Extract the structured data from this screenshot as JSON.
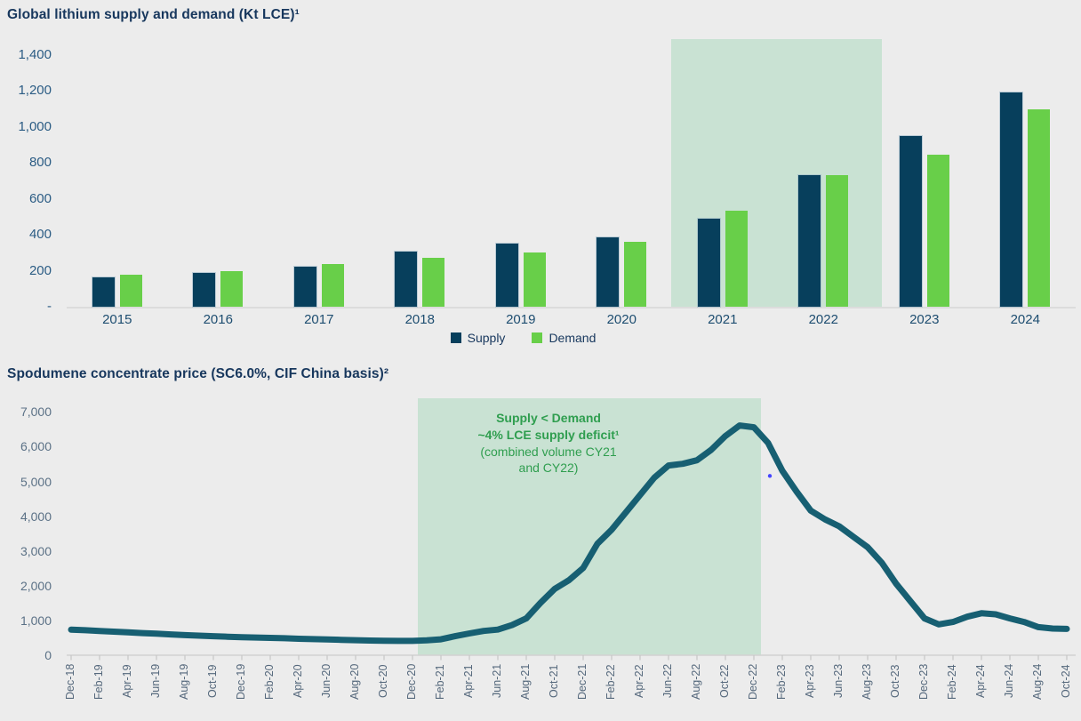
{
  "page": {
    "background_color": "#ececec"
  },
  "chart_data": [
    {
      "type": "bar",
      "title": "Global lithium supply and demand (Kt LCE)¹",
      "categories": [
        "2015",
        "2016",
        "2017",
        "2018",
        "2019",
        "2020",
        "2021",
        "2022",
        "2023",
        "2024"
      ],
      "series": [
        {
          "name": "Supply",
          "color": "#073f5c",
          "values": [
            165,
            190,
            225,
            305,
            350,
            385,
            490,
            730,
            950,
            1190
          ]
        },
        {
          "name": "Demand",
          "color": "#68cf49",
          "values": [
            180,
            200,
            235,
            270,
            300,
            360,
            535,
            730,
            845,
            1100
          ]
        }
      ],
      "ylim": [
        0,
        1490
      ],
      "grid": false,
      "y_ticks": [
        {
          "label": "1,400",
          "value": 1400
        },
        {
          "label": "1,200",
          "value": 1200
        },
        {
          "label": "1,000",
          "value": 1000
        },
        {
          "label": "800",
          "value": 800
        },
        {
          "label": "600",
          "value": 600
        },
        {
          "label": "400",
          "value": 400
        },
        {
          "label": "200",
          "value": 200
        },
        {
          "label": "-",
          "value": 0
        }
      ],
      "legend": {
        "position": "bottom-center",
        "items": [
          "Supply",
          "Demand"
        ]
      },
      "highlight_band": {
        "from": "2021",
        "to": "2022",
        "color": "#c9e2d3"
      }
    },
    {
      "type": "line",
      "title": "Spodumene concentrate price (SC6.0%, CIF China basis)²",
      "line_color": "#175f72",
      "ylim": [
        0,
        7000
      ],
      "grid": false,
      "y_ticks": [
        {
          "label": "7,000",
          "value": 7000
        },
        {
          "label": "6,000",
          "value": 6000
        },
        {
          "label": "5,000",
          "value": 5000
        },
        {
          "label": "4,000",
          "value": 4000
        },
        {
          "label": "3,000",
          "value": 3000
        },
        {
          "label": "2,000",
          "value": 2000
        },
        {
          "label": "1,000",
          "value": 1000
        },
        {
          "label": "0",
          "value": 0
        }
      ],
      "x": [
        "Dec-18",
        "Jan-19",
        "Feb-19",
        "Mar-19",
        "Apr-19",
        "May-19",
        "Jun-19",
        "Jul-19",
        "Aug-19",
        "Sep-19",
        "Oct-19",
        "Nov-19",
        "Dec-19",
        "Jan-20",
        "Feb-20",
        "Mar-20",
        "Apr-20",
        "May-20",
        "Jun-20",
        "Jul-20",
        "Aug-20",
        "Sep-20",
        "Oct-20",
        "Nov-20",
        "Dec-20",
        "Jan-21",
        "Feb-21",
        "Mar-21",
        "Apr-21",
        "May-21",
        "Jun-21",
        "Jul-21",
        "Aug-21",
        "Sep-21",
        "Oct-21",
        "Nov-21",
        "Dec-21",
        "Jan-22",
        "Feb-22",
        "Mar-22",
        "Apr-22",
        "May-22",
        "Jun-22",
        "Jul-22",
        "Aug-22",
        "Sep-22",
        "Oct-22",
        "Nov-22",
        "Dec-22",
        "Jan-23",
        "Feb-23",
        "Mar-23",
        "Apr-23",
        "May-23",
        "Jun-23",
        "Jul-23",
        "Aug-23",
        "Sep-23",
        "Oct-23",
        "Nov-23",
        "Dec-23",
        "Jan-24",
        "Feb-24",
        "Mar-24",
        "Apr-24",
        "May-24",
        "Jun-24",
        "Jul-24",
        "Aug-24",
        "Sep-24",
        "Oct-24"
      ],
      "values": [
        730,
        710,
        690,
        670,
        650,
        630,
        610,
        590,
        570,
        555,
        540,
        525,
        510,
        500,
        490,
        480,
        465,
        455,
        445,
        435,
        425,
        415,
        410,
        405,
        405,
        420,
        450,
        540,
        620,
        690,
        730,
        860,
        1050,
        1500,
        1900,
        2150,
        2500,
        3200,
        3600,
        4100,
        4600,
        5100,
        5450,
        5500,
        5600,
        5900,
        6300,
        6600,
        6550,
        6100,
        5300,
        4700,
        4150,
        3900,
        3700,
        3400,
        3100,
        2650,
        2050,
        1550,
        1050,
        880,
        950,
        1100,
        1200,
        1170,
        1050,
        950,
        800,
        760,
        750
      ],
      "x_tick_labels": [
        "Dec-18",
        "Feb-19",
        "Apr-19",
        "Jun-19",
        "Aug-19",
        "Oct-19",
        "Dec-19",
        "Feb-20",
        "Apr-20",
        "Jun-20",
        "Aug-20",
        "Oct-20",
        "Dec-20",
        "Feb-21",
        "Apr-21",
        "Jun-21",
        "Aug-21",
        "Oct-21",
        "Dec-21",
        "Feb-22",
        "Apr-22",
        "Jun-22",
        "Aug-22",
        "Oct-22",
        "Dec-22",
        "Feb-23",
        "Apr-23",
        "Jun-23",
        "Aug-23",
        "Oct-23",
        "Dec-23",
        "Feb-24",
        "Apr-24",
        "Jun-24",
        "Aug-24",
        "Oct-24"
      ],
      "highlight_band": {
        "from": "Jan-21",
        "to": "Dec-22",
        "color": "#c9e2d3"
      },
      "annotation": {
        "color": "#2f9e4f",
        "lines": [
          "Supply < Demand",
          "~4% LCE supply deficit¹",
          "(combined volume CY21",
          "and CY22)"
        ],
        "bold_lines": [
          0,
          1
        ]
      }
    }
  ]
}
